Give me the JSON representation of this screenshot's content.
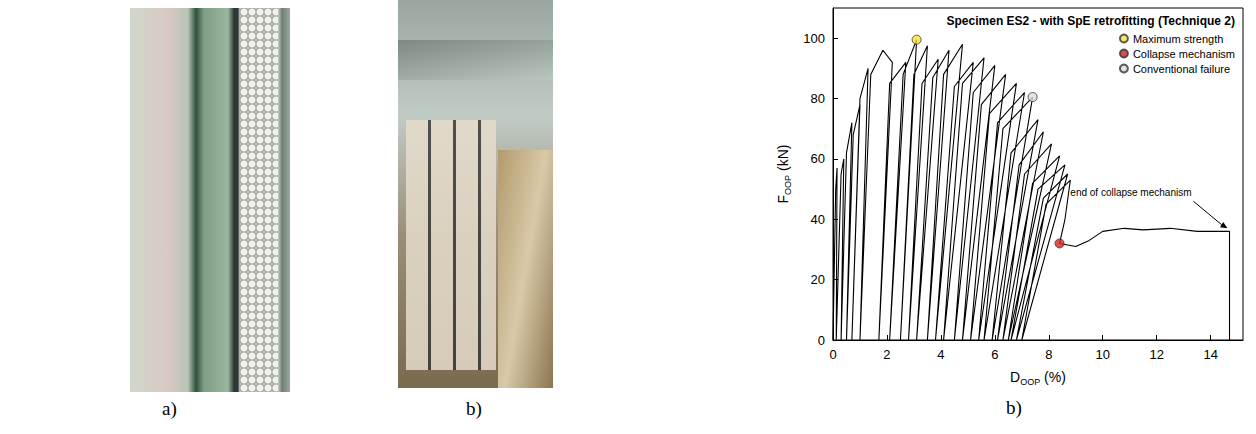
{
  "photo_panels": [
    {
      "label": "a)"
    },
    {
      "label": "b)"
    }
  ],
  "chart_data": {
    "type": "line",
    "panel_label": "b)",
    "title": "Specimen ES2 - with SpE retrofitting (Technique 2)",
    "title_bold": "ES2",
    "x_label": {
      "text": "D",
      "subscript": "OOP",
      "unit": "(%)"
    },
    "y_label": {
      "text": "F",
      "subscript": "OOP",
      "unit": "(kN)"
    },
    "xlim": [
      0,
      15.2
    ],
    "xticks": [
      0,
      2,
      4,
      6,
      8,
      10,
      12,
      14
    ],
    "ylim": [
      0,
      110
    ],
    "yticks": [
      0,
      20,
      40,
      60,
      80,
      100
    ],
    "grid": false,
    "legend": "top-right",
    "series": [
      {
        "type": "line",
        "color": "#000000",
        "line_style": "solid",
        "x": [
          0,
          0.1,
          0.15,
          0.12,
          0.3,
          0.4,
          0.3,
          0.5,
          0.7,
          0.5,
          0.75,
          1.0,
          0.7,
          1.0,
          1.3,
          1.0,
          1.4,
          1.85,
          2.2,
          1.7,
          2.1,
          2.7,
          2.1,
          2.6,
          3.1,
          2.5,
          3.0,
          3.5,
          2.8,
          3.3,
          3.9,
          3.1,
          3.7,
          4.3,
          3.5,
          4.1,
          4.8,
          3.8,
          4.5,
          5.2,
          4.1,
          4.8,
          5.6,
          4.5,
          5.2,
          6.0,
          4.8,
          5.5,
          6.4,
          5.1,
          5.8,
          6.8,
          5.4,
          6.1,
          7.1,
          5.6,
          6.3,
          7.4,
          5.9,
          6.6,
          7.6,
          6.1,
          6.9,
          7.8,
          6.3,
          7.1,
          8.1,
          6.5,
          7.4,
          8.4,
          6.6,
          7.6,
          8.6,
          6.8,
          7.8,
          8.7,
          7.0,
          7.9,
          8.8,
          8.6,
          8.4,
          9.0,
          9.5,
          10.0,
          10.8,
          11.5,
          12.5,
          13.5,
          14.7,
          14.7
        ],
        "values": [
          0,
          50,
          57,
          0,
          55,
          60,
          0,
          62,
          72,
          0,
          68,
          78,
          0,
          80,
          90,
          0,
          88,
          96,
          92,
          0,
          85,
          92,
          0,
          88,
          99.5,
          0,
          88,
          97.5,
          0,
          85,
          93,
          0,
          87,
          96,
          0,
          88,
          98,
          0,
          84,
          92,
          0,
          85,
          93.5,
          0,
          82,
          91,
          0,
          78,
          88,
          0,
          75,
          85,
          0,
          72,
          82,
          0,
          70,
          80.5,
          0,
          62,
          73,
          0,
          58,
          69,
          0,
          55,
          65,
          0,
          52,
          61,
          0,
          50,
          58,
          0,
          47,
          55,
          0,
          45,
          53,
          40,
          32,
          31,
          33,
          36,
          37,
          36.5,
          37,
          36,
          36,
          0
        ]
      },
      {
        "type": "scatter",
        "name": "Maximum strength",
        "color": "#f2e33c",
        "marker": "circle",
        "x": [
          3.1
        ],
        "values": [
          99.5
        ]
      },
      {
        "type": "scatter",
        "name": "Collapse mechanism",
        "color": "#d8231c",
        "marker": "circle",
        "x": [
          8.4
        ],
        "values": [
          32
        ]
      },
      {
        "type": "scatter",
        "name": "Conventional failure",
        "color": "#dcdcdc",
        "marker": "circle",
        "x": [
          7.4
        ],
        "values": [
          80.5
        ]
      }
    ],
    "annotations": [
      {
        "text": "end of collapse mechanism",
        "x": 14.7,
        "y": 36
      }
    ]
  }
}
